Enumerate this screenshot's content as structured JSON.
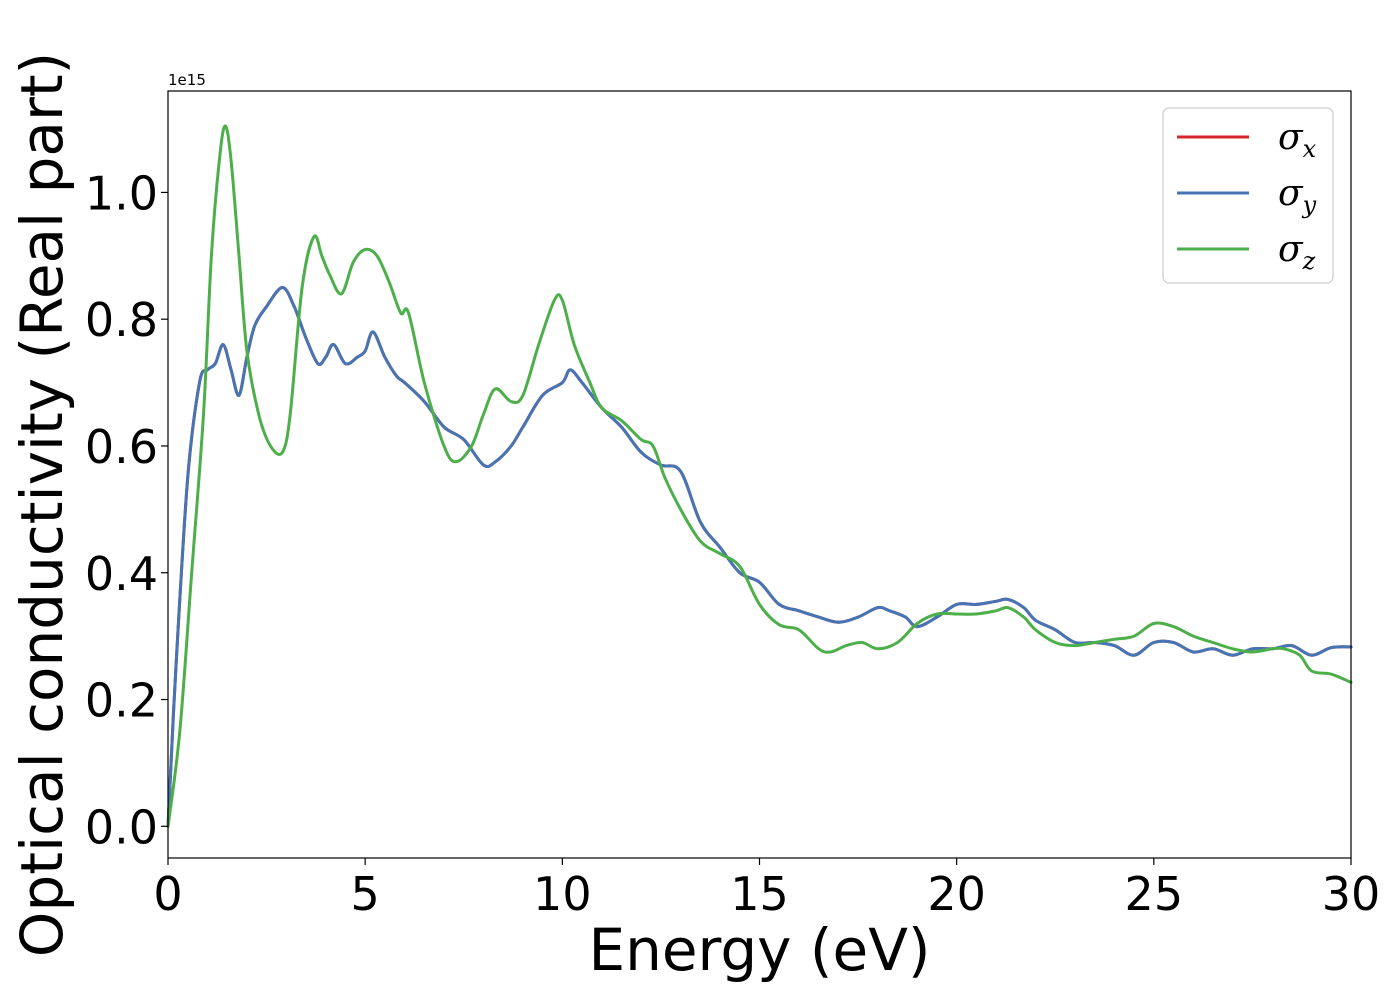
{
  "chart_data": {
    "type": "line",
    "xlabel": "Energy (eV)",
    "ylabel": "Optical conductivity (Real part)",
    "y_offset_label": "1e15",
    "xlim": [
      0,
      30
    ],
    "ylim": [
      -0.05,
      1.16
    ],
    "x_ticks": [
      0,
      5,
      10,
      15,
      20,
      25,
      30
    ],
    "x_tick_labels": [
      "0",
      "5",
      "10",
      "15",
      "20",
      "25",
      "30"
    ],
    "y_ticks": [
      0.0,
      0.2,
      0.4,
      0.6,
      0.8,
      1.0
    ],
    "y_tick_labels": [
      "0.0",
      "0.2",
      "0.4",
      "0.6",
      "0.8",
      "1.0"
    ],
    "grid": false,
    "legend_position": "top-right",
    "series": [
      {
        "name": "σx",
        "symbol": "σ",
        "subscript": "x",
        "color": "#d62728",
        "x": [
          0,
          0.2,
          0.5,
          0.8,
          1.0,
          1.2,
          1.4,
          1.6,
          1.8,
          2.0,
          2.2,
          2.5,
          2.9,
          3.2,
          3.5,
          3.8,
          4.0,
          4.2,
          4.5,
          4.8,
          5.0,
          5.2,
          5.5,
          5.8,
          6.0,
          6.5,
          7.0,
          7.5,
          8.0,
          8.3,
          8.7,
          9.0,
          9.5,
          10.0,
          10.2,
          10.5,
          11.0,
          11.5,
          12.0,
          12.5,
          13.0,
          13.5,
          14.0,
          14.5,
          15.0,
          15.5,
          16.0,
          16.5,
          17.0,
          17.5,
          18.0,
          18.3,
          18.7,
          19.0,
          19.5,
          20.0,
          20.5,
          21.0,
          21.3,
          21.7,
          22.0,
          22.5,
          23.0,
          23.5,
          24.0,
          24.5,
          25.0,
          25.5,
          26.0,
          26.5,
          27.0,
          27.5,
          28.0,
          28.5,
          29.0,
          29.5,
          30.0
        ],
        "y": [
          0.0,
          0.25,
          0.55,
          0.7,
          0.72,
          0.73,
          0.76,
          0.72,
          0.68,
          0.74,
          0.79,
          0.82,
          0.85,
          0.82,
          0.77,
          0.73,
          0.74,
          0.76,
          0.73,
          0.74,
          0.75,
          0.78,
          0.74,
          0.71,
          0.7,
          0.67,
          0.63,
          0.61,
          0.57,
          0.575,
          0.6,
          0.63,
          0.68,
          0.7,
          0.72,
          0.7,
          0.66,
          0.63,
          0.59,
          0.57,
          0.56,
          0.48,
          0.44,
          0.4,
          0.385,
          0.35,
          0.34,
          0.33,
          0.322,
          0.33,
          0.345,
          0.34,
          0.33,
          0.315,
          0.33,
          0.35,
          0.35,
          0.355,
          0.358,
          0.345,
          0.325,
          0.31,
          0.29,
          0.29,
          0.285,
          0.27,
          0.29,
          0.29,
          0.275,
          0.28,
          0.27,
          0.28,
          0.28,
          0.285,
          0.27,
          0.282,
          0.283
        ]
      },
      {
        "name": "σy",
        "symbol": "σ",
        "subscript": "y",
        "color": "#4575b4",
        "x": [
          0,
          0.2,
          0.5,
          0.8,
          1.0,
          1.2,
          1.4,
          1.6,
          1.8,
          2.0,
          2.2,
          2.5,
          2.9,
          3.2,
          3.5,
          3.8,
          4.0,
          4.2,
          4.5,
          4.8,
          5.0,
          5.2,
          5.5,
          5.8,
          6.0,
          6.5,
          7.0,
          7.5,
          8.0,
          8.3,
          8.7,
          9.0,
          9.5,
          10.0,
          10.2,
          10.5,
          11.0,
          11.5,
          12.0,
          12.5,
          13.0,
          13.5,
          14.0,
          14.5,
          15.0,
          15.5,
          16.0,
          16.5,
          17.0,
          17.5,
          18.0,
          18.3,
          18.7,
          19.0,
          19.5,
          20.0,
          20.5,
          21.0,
          21.3,
          21.7,
          22.0,
          22.5,
          23.0,
          23.5,
          24.0,
          24.5,
          25.0,
          25.5,
          26.0,
          26.5,
          27.0,
          27.5,
          28.0,
          28.5,
          29.0,
          29.5,
          30.0
        ],
        "y": [
          0.0,
          0.25,
          0.55,
          0.7,
          0.72,
          0.73,
          0.76,
          0.72,
          0.68,
          0.74,
          0.79,
          0.82,
          0.85,
          0.82,
          0.77,
          0.73,
          0.74,
          0.76,
          0.73,
          0.74,
          0.75,
          0.78,
          0.74,
          0.71,
          0.7,
          0.67,
          0.63,
          0.61,
          0.57,
          0.575,
          0.6,
          0.63,
          0.68,
          0.7,
          0.72,
          0.7,
          0.66,
          0.63,
          0.59,
          0.57,
          0.56,
          0.48,
          0.44,
          0.4,
          0.385,
          0.35,
          0.34,
          0.33,
          0.322,
          0.33,
          0.345,
          0.34,
          0.33,
          0.315,
          0.33,
          0.35,
          0.35,
          0.355,
          0.358,
          0.345,
          0.325,
          0.31,
          0.29,
          0.29,
          0.285,
          0.27,
          0.29,
          0.29,
          0.275,
          0.28,
          0.27,
          0.28,
          0.28,
          0.285,
          0.27,
          0.282,
          0.283
        ]
      },
      {
        "name": "σz",
        "symbol": "σ",
        "subscript": "z",
        "color": "#4daf4a",
        "x": [
          0,
          0.3,
          0.6,
          0.9,
          1.1,
          1.3,
          1.45,
          1.6,
          1.8,
          2.0,
          2.3,
          2.6,
          2.9,
          3.1,
          3.4,
          3.7,
          3.9,
          4.1,
          4.4,
          4.7,
          5.0,
          5.3,
          5.6,
          5.9,
          6.1,
          6.5,
          7.0,
          7.3,
          7.7,
          8.0,
          8.3,
          8.7,
          9.0,
          9.4,
          9.8,
          10.0,
          10.3,
          10.7,
          11.0,
          11.5,
          12.0,
          12.3,
          12.6,
          13.0,
          13.5,
          14.0,
          14.5,
          15.0,
          15.5,
          16.0,
          16.5,
          16.8,
          17.2,
          17.6,
          18.0,
          18.5,
          19.0,
          19.5,
          20.0,
          20.5,
          21.0,
          21.3,
          21.7,
          22.0,
          22.5,
          23.0,
          23.5,
          24.0,
          24.5,
          25.0,
          25.5,
          26.0,
          26.5,
          27.0,
          27.5,
          28.0,
          28.3,
          28.7,
          29.0,
          29.5,
          30.0
        ],
        "y": [
          0.0,
          0.15,
          0.4,
          0.65,
          0.9,
          1.05,
          1.105,
          1.05,
          0.9,
          0.75,
          0.65,
          0.6,
          0.59,
          0.65,
          0.85,
          0.93,
          0.9,
          0.87,
          0.84,
          0.89,
          0.91,
          0.9,
          0.86,
          0.81,
          0.81,
          0.7,
          0.6,
          0.575,
          0.6,
          0.65,
          0.69,
          0.67,
          0.68,
          0.76,
          0.83,
          0.83,
          0.76,
          0.7,
          0.66,
          0.64,
          0.61,
          0.6,
          0.55,
          0.5,
          0.45,
          0.43,
          0.41,
          0.35,
          0.318,
          0.31,
          0.28,
          0.275,
          0.285,
          0.29,
          0.28,
          0.29,
          0.32,
          0.335,
          0.335,
          0.335,
          0.34,
          0.345,
          0.33,
          0.31,
          0.29,
          0.285,
          0.29,
          0.295,
          0.3,
          0.32,
          0.315,
          0.3,
          0.29,
          0.28,
          0.275,
          0.28,
          0.28,
          0.27,
          0.245,
          0.24,
          0.227
        ]
      }
    ]
  }
}
